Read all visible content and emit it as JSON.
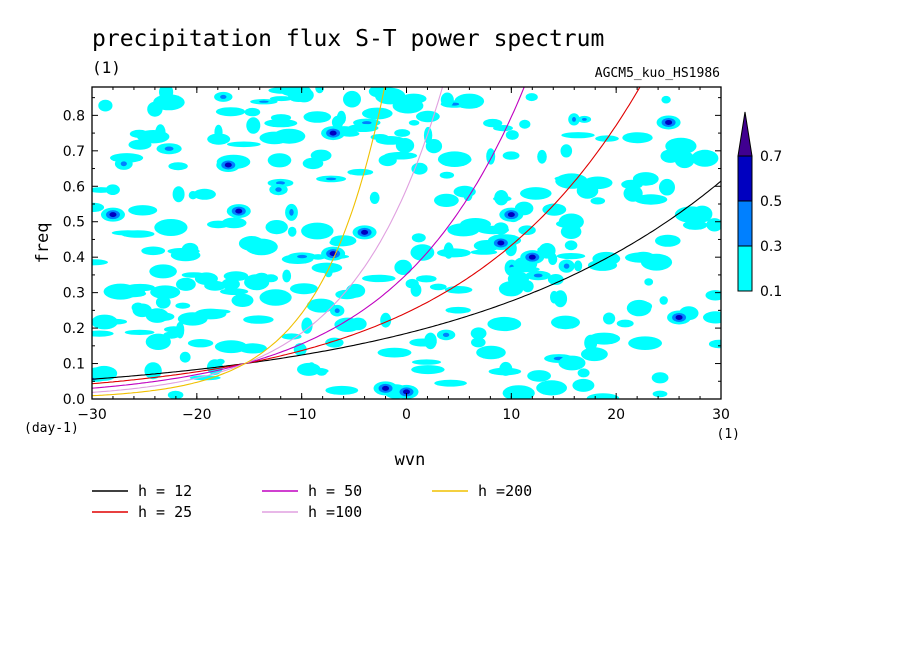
{
  "chart_data": {
    "type": "heatmap",
    "title": "precipitation flux S-T power spectrum",
    "subtitle_left": "(1)",
    "subtitle_right": "AGCM5_kuo_HS1986",
    "xlabel": "wvn",
    "ylabel": "freq",
    "x_unit": "(1)",
    "y_unit": "(day-1)",
    "xlim": [
      -30,
      30
    ],
    "ylim": [
      0.0,
      0.88
    ],
    "x_ticks": [
      "−30",
      "−20",
      "−10",
      "0",
      "10",
      "20",
      "30"
    ],
    "x_tick_values": [
      -30,
      -20,
      -10,
      0,
      10,
      20,
      30
    ],
    "y_ticks": [
      "0.0",
      "0.1",
      "0.2",
      "0.3",
      "0.4",
      "0.5",
      "0.6",
      "0.7",
      "0.8"
    ],
    "y_tick_values": [
      0.0,
      0.1,
      0.2,
      0.3,
      0.4,
      0.5,
      0.6,
      0.7,
      0.8
    ],
    "colorbar": {
      "levels": [
        "0.1",
        "0.3",
        "0.5",
        "0.7"
      ],
      "colors": [
        "#00ffff",
        "#0080ff",
        "#0000c0",
        "#400090"
      ]
    },
    "dispersion_curves": [
      {
        "name": "h = 12",
        "h": 12,
        "color": "#000000"
      },
      {
        "name": "h = 25",
        "h": 25,
        "color": "#e00000"
      },
      {
        "name": "h = 50",
        "h": 50,
        "color": "#c000c0"
      },
      {
        "name": "h =100",
        "h": 100,
        "color": "#e0a0e0"
      },
      {
        "name": "h =200",
        "h": 200,
        "color": "#f0c000"
      }
    ],
    "high_power_blobs": [
      {
        "wvn": 9,
        "freq": 0.44,
        "level": 0.5
      },
      {
        "wvn": 10,
        "freq": 0.52,
        "level": 0.5
      },
      {
        "wvn": -16,
        "freq": 0.53,
        "level": 0.5
      },
      {
        "wvn": -7,
        "freq": 0.41,
        "level": 0.5
      },
      {
        "wvn": -2,
        "freq": 0.03,
        "level": 0.5
      },
      {
        "wvn": 0,
        "freq": 0.02,
        "level": 0.5
      },
      {
        "wvn": -7,
        "freq": 0.75,
        "level": 0.5
      },
      {
        "wvn": 12,
        "freq": 0.4,
        "level": 0.5
      },
      {
        "wvn": -4,
        "freq": 0.47,
        "level": 0.5
      },
      {
        "wvn": 26,
        "freq": 0.23,
        "level": 0.5
      },
      {
        "wvn": 25,
        "freq": 0.78,
        "level": 0.5
      },
      {
        "wvn": -17,
        "freq": 0.66,
        "level": 0.5
      },
      {
        "wvn": -28,
        "freq": 0.52,
        "level": 0.5
      }
    ]
  }
}
